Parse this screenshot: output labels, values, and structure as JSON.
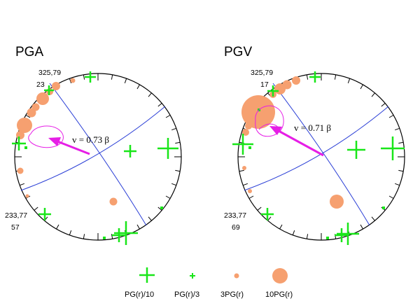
{
  "colors": {
    "cross": "#19e619",
    "circle": "#f6a070",
    "plane": "#2b3fd6",
    "arrow": "#e61ee6",
    "frame": "#000000"
  },
  "panels": [
    {
      "title": "PGA",
      "strike_label_top": "325,79",
      "count_label_top": "23",
      "strike_label_bottom": "233,77",
      "count_label_bottom": "57",
      "velocity_label": "v = 0.73 β"
    },
    {
      "title": "PGV",
      "strike_label_top": "325,79",
      "count_label_top": "17",
      "strike_label_bottom": "233,77",
      "count_label_bottom": "69",
      "velocity_label": "v = 0.71 β"
    }
  ],
  "legend": [
    {
      "label": "PG(r)/10",
      "symbol": "large-cross"
    },
    {
      "label": "PG(r)/3",
      "symbol": "small-cross"
    },
    {
      "label": "3PG(r)",
      "symbol": "small-circle"
    },
    {
      "label": "10PG(r)",
      "symbol": "large-circle"
    }
  ]
}
